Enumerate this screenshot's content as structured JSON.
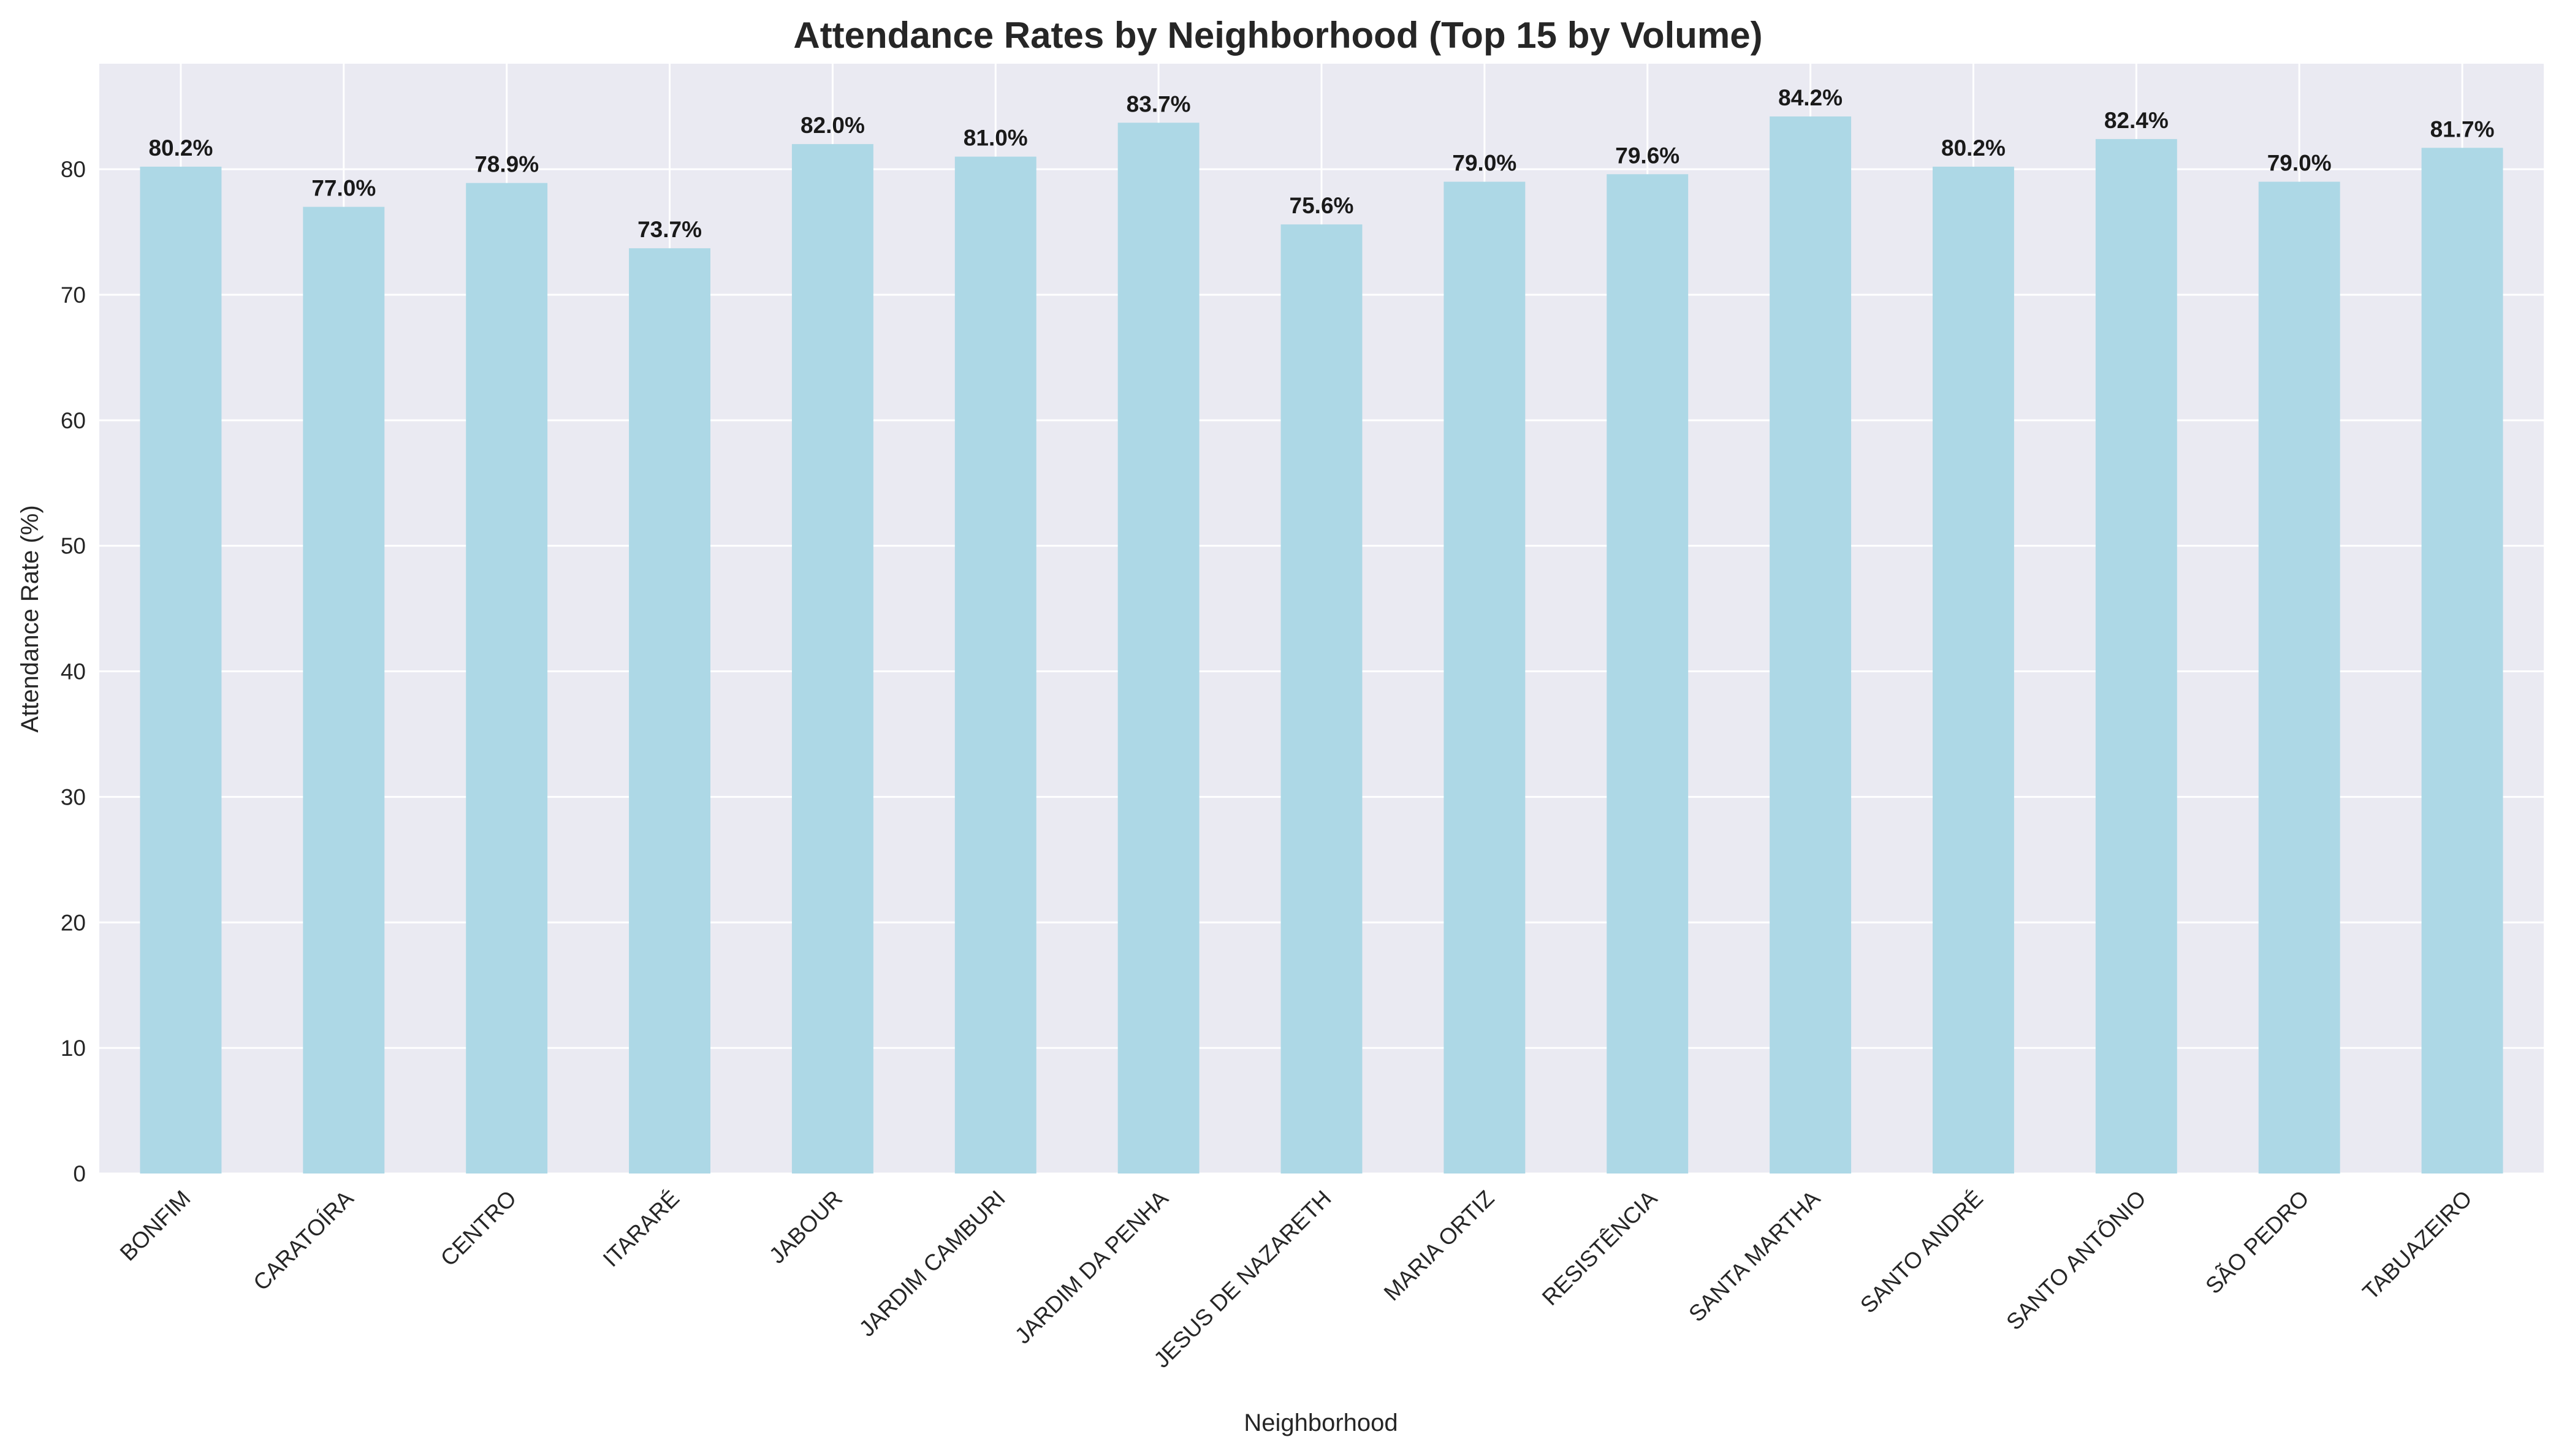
{
  "chart_data": {
    "type": "bar",
    "title": "Attendance Rates by Neighborhood (Top 15 by Volume)",
    "xlabel": "Neighborhood",
    "ylabel": "Attendance Rate (%)",
    "ylim": [
      0,
      88.4
    ],
    "yticks": [
      "0",
      "10",
      "20",
      "30",
      "40",
      "50",
      "60",
      "70",
      "80"
    ],
    "grid": true,
    "legend": "none",
    "bar_color": "#add8e6",
    "plot_background": "#eaeaf2",
    "grid_color": "#ffffff",
    "categories": [
      "BONFIM",
      "CARATOÍRA",
      "CENTRO",
      "ITARARÉ",
      "JABOUR",
      "JARDIM CAMBURI",
      "JARDIM DA PENHA",
      "JESUS DE NAZARETH",
      "MARIA ORTIZ",
      "RESISTÊNCIA",
      "SANTA MARTHA",
      "SANTO ANDRÉ",
      "SANTO ANTÔNIO",
      "SÃO PEDRO",
      "TABUAZEIRO"
    ],
    "values": [
      80.2,
      77.0,
      78.9,
      73.7,
      82.0,
      81.0,
      83.7,
      75.6,
      79.0,
      79.6,
      84.2,
      80.2,
      82.4,
      79.0,
      81.7
    ],
    "data_labels": [
      "80.2%",
      "77.0%",
      "78.9%",
      "73.7%",
      "82.0%",
      "81.0%",
      "83.7%",
      "75.6%",
      "79.0%",
      "79.6%",
      "84.2%",
      "80.2%",
      "82.4%",
      "79.0%",
      "81.7%"
    ]
  }
}
